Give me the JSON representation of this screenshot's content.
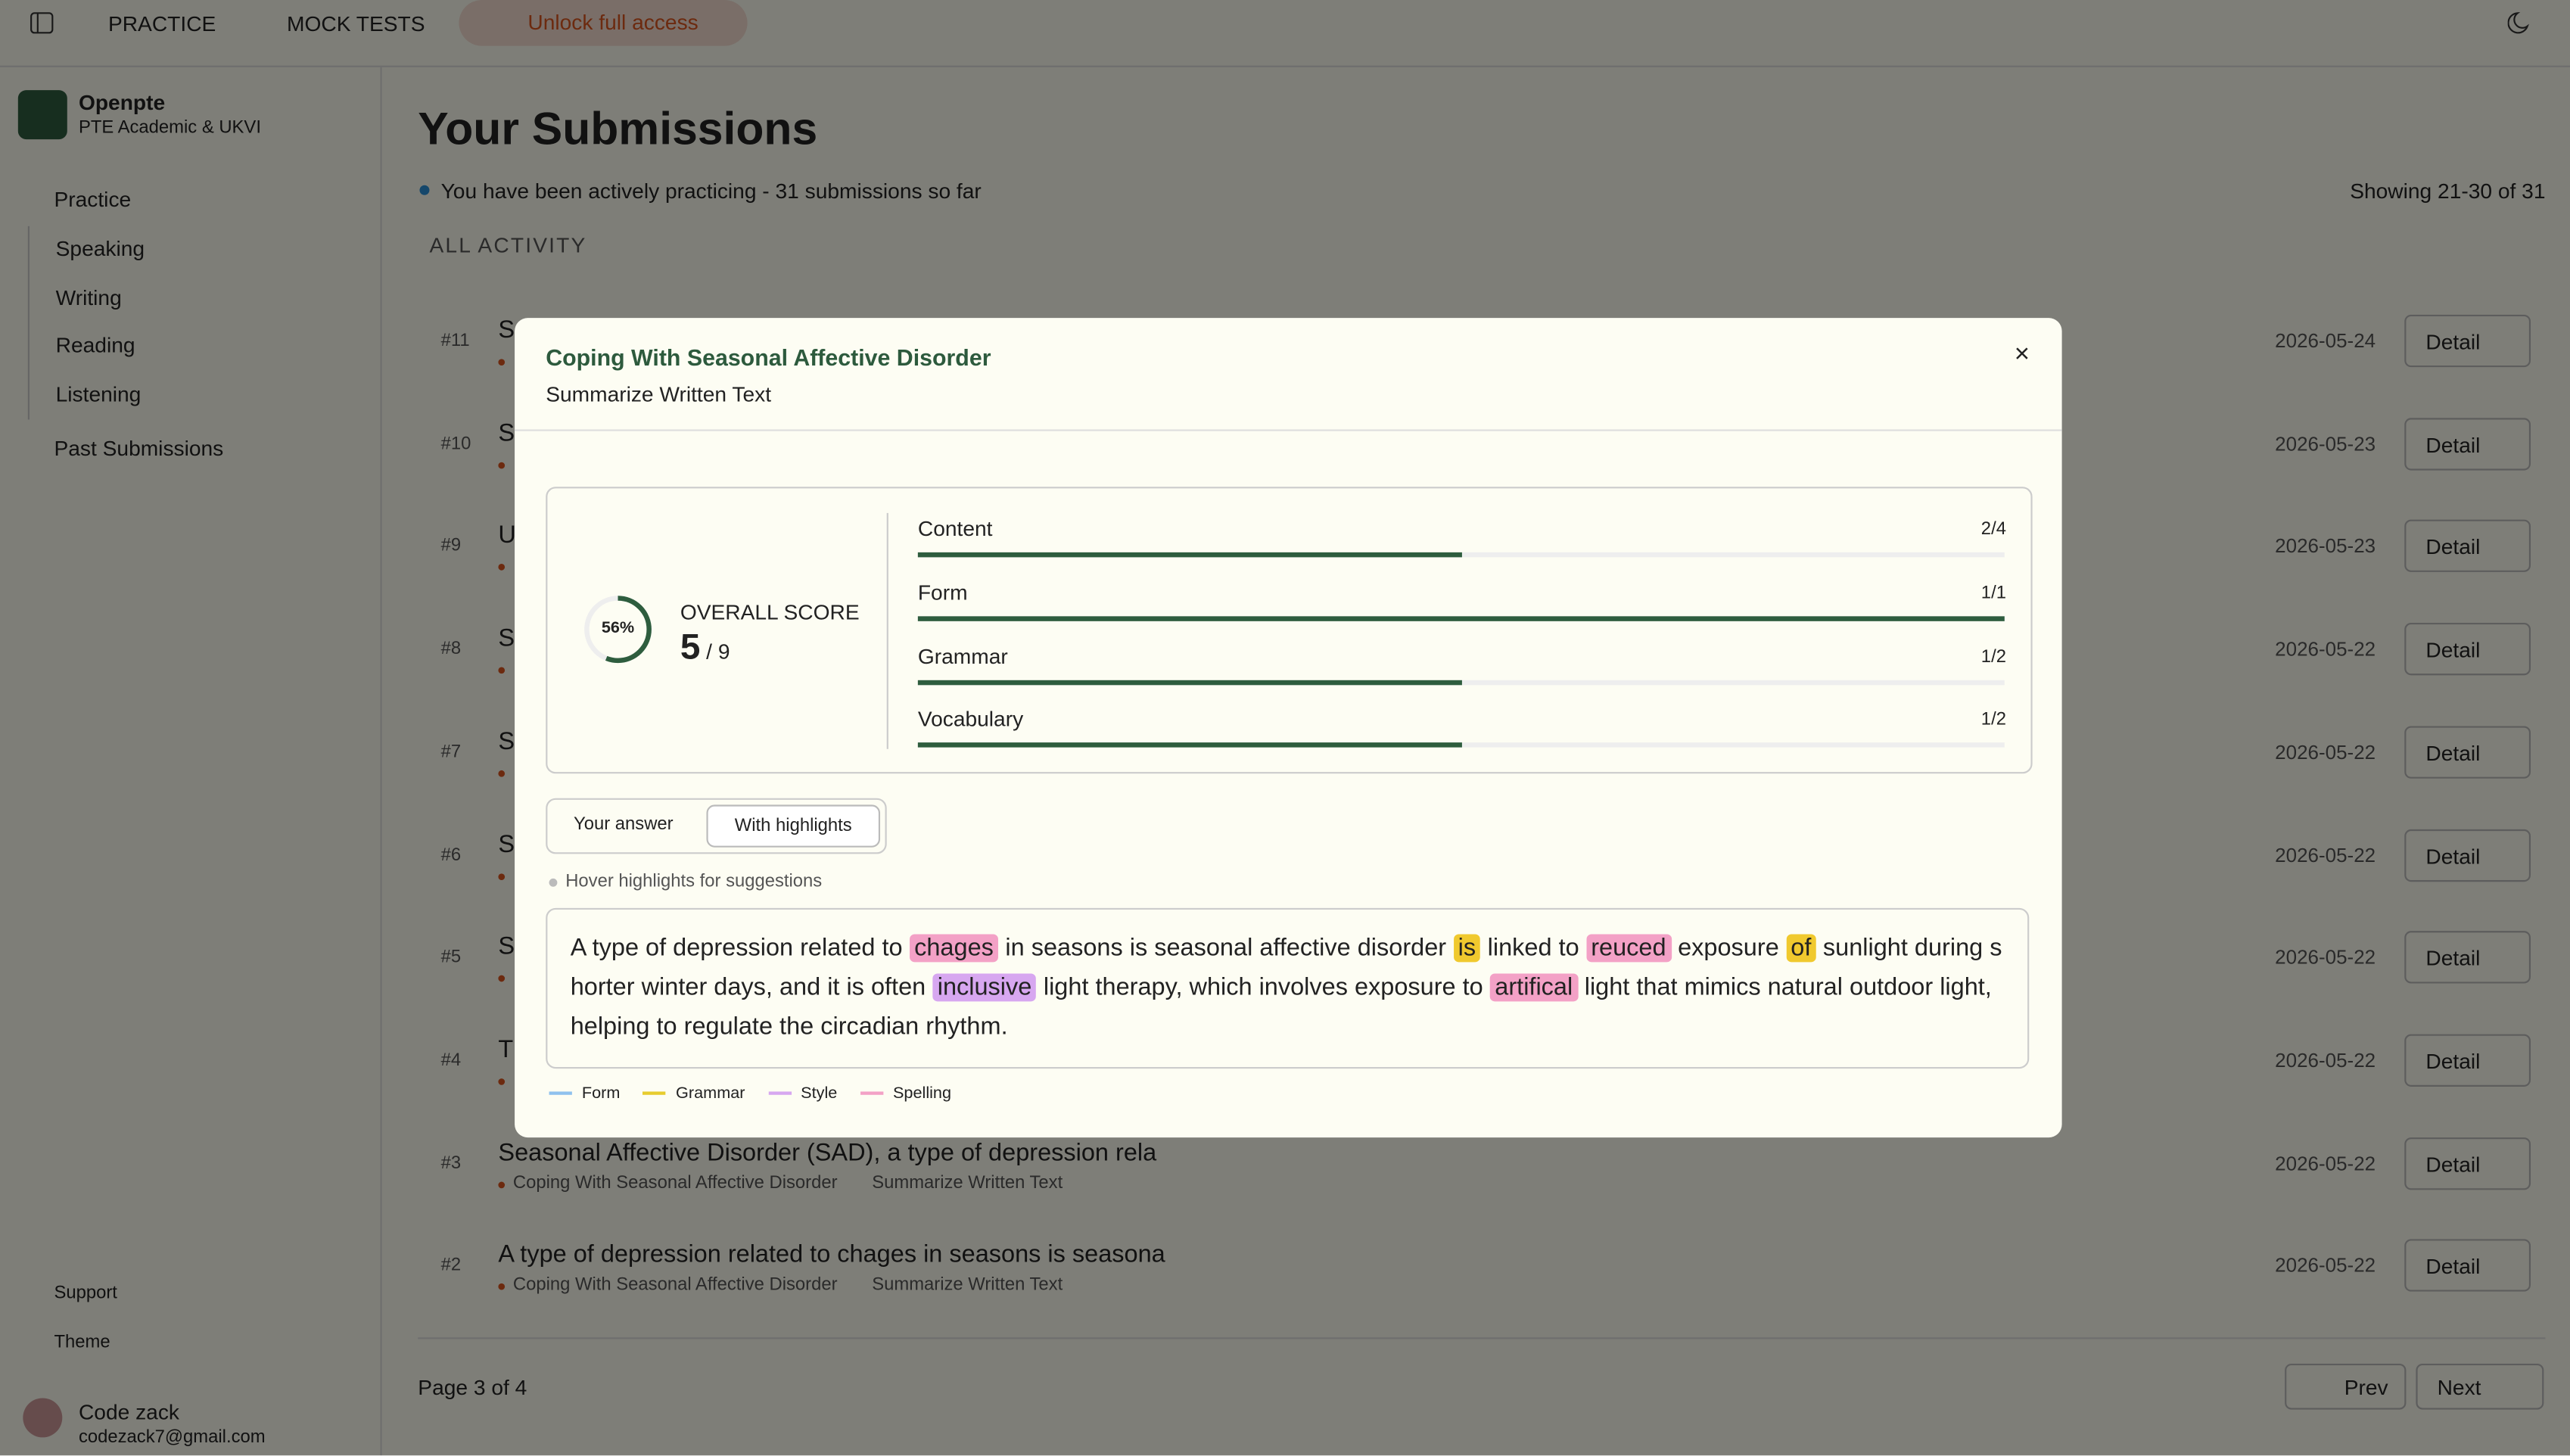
{
  "topbar": {
    "nav": [
      "PRACTICE",
      "MOCK TESTS"
    ],
    "unlock": "Unlock full access"
  },
  "sidebar": {
    "brand": "Openpte",
    "tagline": "PTE Academic & UKVI",
    "practice": "Practice",
    "items": [
      "Speaking",
      "Writing",
      "Reading",
      "Listening"
    ],
    "past": "Past Submissions",
    "support": "Support",
    "theme": "Theme",
    "user": {
      "name": "Code zack",
      "email": "codezack7@gmail.com"
    }
  },
  "main": {
    "title": "Your Submissions",
    "status": "You have been actively practicing - 31 submissions so far",
    "showing": "Showing 21-30 of 31",
    "section": "ALL ACTIVITY",
    "rows": [
      {
        "id": "#11",
        "title": "S",
        "date": "2026-05-24"
      },
      {
        "id": "#10",
        "title": "S",
        "date": "2026-05-23"
      },
      {
        "id": "#9",
        "title": "U",
        "date": "2026-05-23"
      },
      {
        "id": "#8",
        "title": "S",
        "date": "2026-05-22"
      },
      {
        "id": "#7",
        "title": "S",
        "date": "2026-05-22"
      },
      {
        "id": "#6",
        "title": "S",
        "date": "2026-05-22"
      },
      {
        "id": "#5",
        "title": "S",
        "date": "2026-05-22"
      },
      {
        "id": "#4",
        "title": "T",
        "date": "2026-05-22"
      },
      {
        "id": "#3",
        "title": "Seasonal Affective Disorder (SAD), a type of depression rela",
        "topic": "Coping With Seasonal Affective Disorder",
        "task": "Summarize Written Text",
        "date": "2026-05-22"
      },
      {
        "id": "#2",
        "title": "A type of depression related to chages in seasons is seasona",
        "topic": "Coping With Seasonal Affective Disorder",
        "task": "Summarize Written Text",
        "date": "2026-05-22"
      }
    ],
    "detail": "Detail",
    "page": "Page 3 of 4",
    "prev": "Prev",
    "next": "Next"
  },
  "modal": {
    "title": "Coping With Seasonal Affective Disorder",
    "subtitle": "Summarize Written Text",
    "overall": {
      "label": "OVERALL SCORE",
      "percent": 56,
      "percent_label": "56%",
      "score": 5,
      "max": 9
    },
    "criteria": [
      {
        "name": "Content",
        "score": 2,
        "max": 4
      },
      {
        "name": "Form",
        "score": 1,
        "max": 1
      },
      {
        "name": "Grammar",
        "score": 1,
        "max": 2
      },
      {
        "name": "Vocabulary",
        "score": 1,
        "max": 2
      }
    ],
    "tabs": [
      "Your answer",
      "With highlights"
    ],
    "hint": "Hover highlights for suggestions",
    "answer": [
      {
        "text": "A type of depression related to "
      },
      {
        "text": "chages",
        "kind": "spelling"
      },
      {
        "text": " in seasons is seasonal affective disorder "
      },
      {
        "text": "is",
        "kind": "grammar"
      },
      {
        "text": " linked to "
      },
      {
        "text": "reuced",
        "kind": "spelling"
      },
      {
        "text": " exposure "
      },
      {
        "text": "of",
        "kind": "grammar"
      },
      {
        "text": " sunlight during shorter winter days, and it is often "
      },
      {
        "text": "inclusive",
        "kind": "style"
      },
      {
        "text": " light therapy, which involves exposure to "
      },
      {
        "text": "artifical",
        "kind": "spelling"
      },
      {
        "text": " light that mimics natural outdoor light, helping to regulate the circadian rhythm."
      }
    ],
    "legend": [
      {
        "name": "Form",
        "color": "#8fc1ee"
      },
      {
        "name": "Grammar",
        "color": "#e7cc2e"
      },
      {
        "name": "Style",
        "color": "#d7a7f0"
      },
      {
        "name": "Spelling",
        "color": "#f3a1c6"
      }
    ]
  }
}
